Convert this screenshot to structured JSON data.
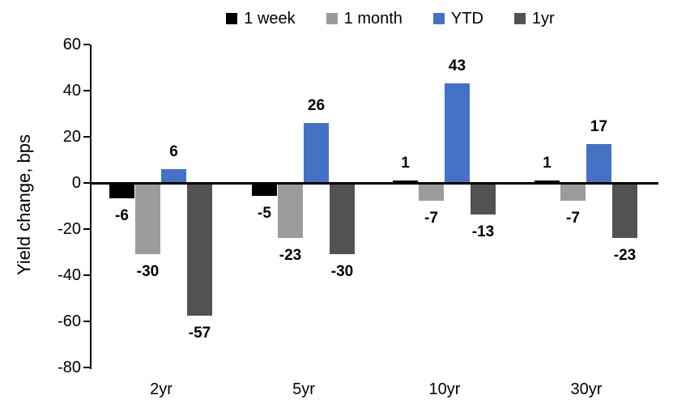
{
  "chart_data": {
    "type": "bar",
    "title": "",
    "xlabel": "",
    "ylabel": "Yield change, bps",
    "categories": [
      "2yr",
      "5yr",
      "10yr",
      "30yr"
    ],
    "series": [
      {
        "name": "1 week",
        "color": "#000000",
        "values": [
          -6,
          -5,
          1,
          1
        ]
      },
      {
        "name": "1 month",
        "color": "#9b9b9b",
        "values": [
          -30,
          -23,
          -7,
          -7
        ]
      },
      {
        "name": "YTD",
        "color": "#4472c4",
        "values": [
          6,
          26,
          43,
          17
        ]
      },
      {
        "name": "1yr",
        "color": "#525252",
        "values": [
          -57,
          -30,
          -13,
          -23
        ]
      }
    ],
    "ylim": [
      -80,
      60
    ],
    "ytick_step": 20,
    "yticks": [
      60,
      40,
      20,
      0,
      -20,
      -40,
      -60,
      -80
    ],
    "grid": false,
    "legend_position": "top",
    "data_labels": true,
    "axis_color": "#000000"
  }
}
